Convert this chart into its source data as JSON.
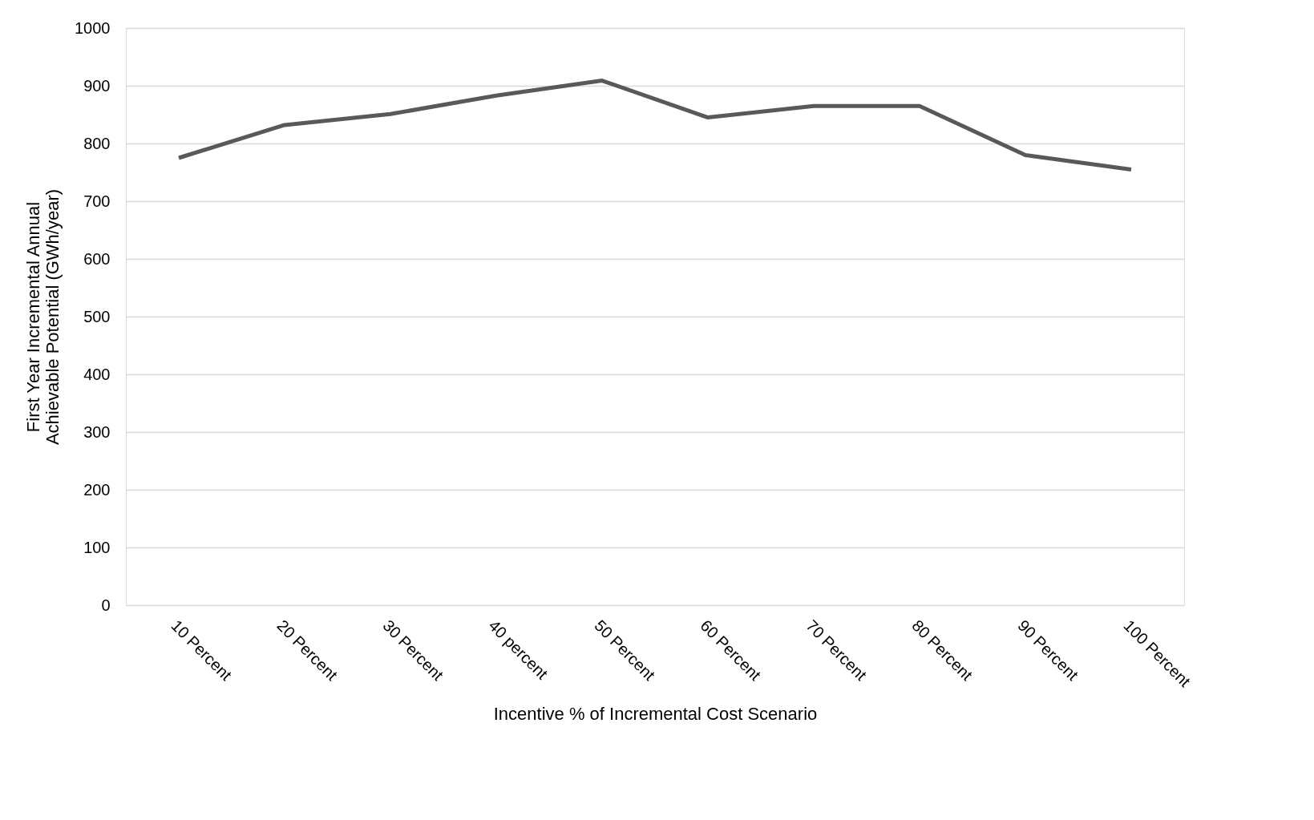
{
  "chart_data": {
    "type": "line",
    "xlabel": "Incentive % of Incremental Cost Scenario",
    "ylabel": "First Year Incremental Annual Achievable Potential (GWh/year)",
    "categories": [
      "10 Percent",
      "20 Percent",
      "30 Percent",
      "40 percent",
      "50 Percent",
      "60 Percent",
      "70 Percent",
      "80 Percent",
      "90 Percent",
      "100 Percent"
    ],
    "series": [
      {
        "color": "#595959",
        "values": [
          775,
          832,
          851,
          883,
          909,
          845,
          865,
          865,
          780,
          755
        ]
      }
    ],
    "ylim": [
      0,
      1000
    ],
    "yticks": [
      0,
      100,
      200,
      300,
      400,
      500,
      600,
      700,
      800,
      900,
      1000
    ],
    "grid": "y",
    "marker": "none",
    "line_style": "solid",
    "legend": false
  }
}
